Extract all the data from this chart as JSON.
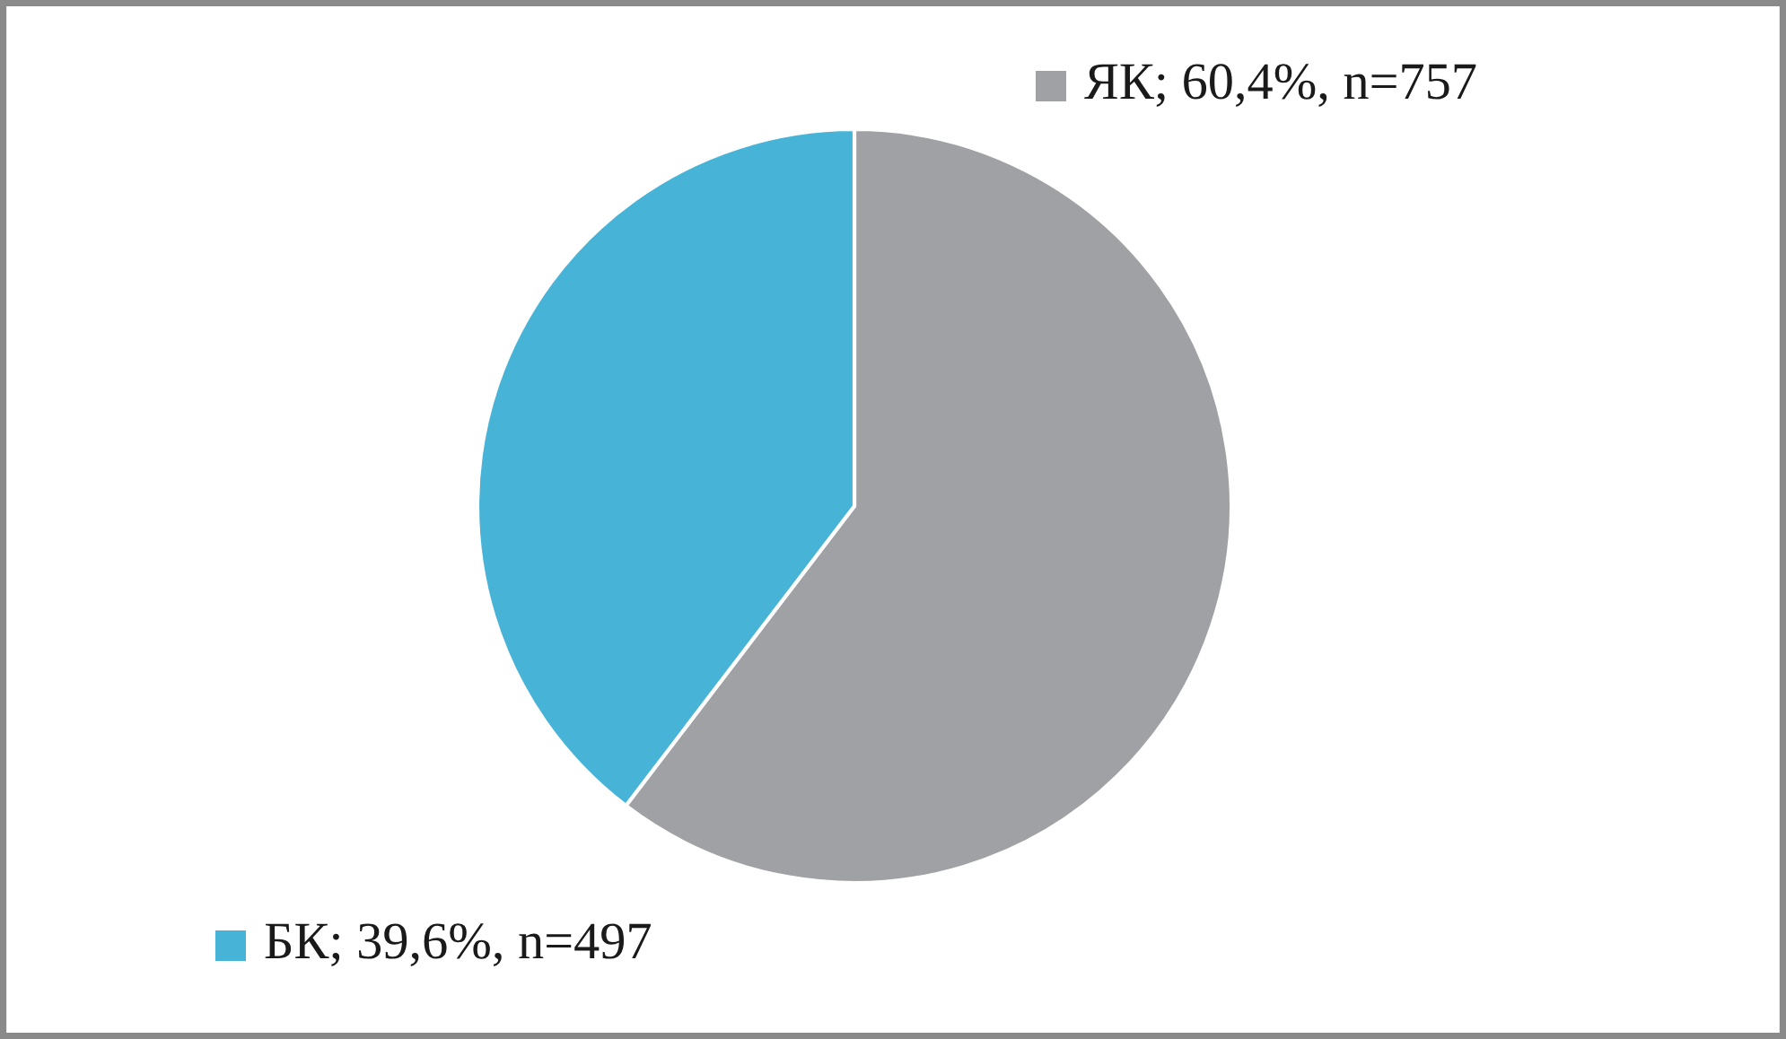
{
  "chart_data": {
    "type": "pie",
    "categories": [
      "ЯК",
      "БК"
    ],
    "values": [
      757,
      497
    ],
    "colors": [
      "#a0a1a5",
      "#47b3d6"
    ],
    "value_labels": [
      "60,4%, n=757",
      "39,6%, n=497"
    ],
    "legend": [
      "top right",
      "bottom left"
    ]
  }
}
